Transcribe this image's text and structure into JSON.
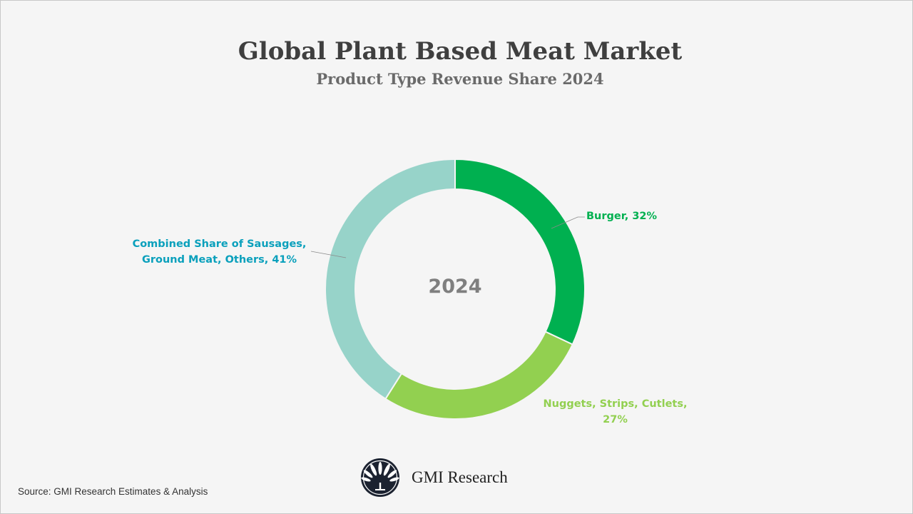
{
  "chart_data": {
    "type": "pie",
    "variant": "donut",
    "title": "Global Plant Based Meat Market",
    "subtitle": "Product Type Revenue Share 2024",
    "center_label": "2024",
    "unit": "%",
    "slices": [
      {
        "name": "Burger",
        "value": 32,
        "label": "Burger, 32%",
        "color": "#00b050",
        "label_color": "#00b050"
      },
      {
        "name": "Nuggets, Strips, Cutlets",
        "value": 27,
        "label_line1": "Nuggets, Strips, Cutlets,",
        "label_line2": "27%",
        "color": "#92d050",
        "label_color": "#92d050"
      },
      {
        "name": "Combined Share of Sausages, Ground Meat, Others",
        "value": 41,
        "label_line1": "Combined Share of Sausages,",
        "label_line2": "Ground Meat, Others, 41%",
        "color": "#97d3c9",
        "label_color": "#0aa0bc"
      }
    ]
  },
  "footer": {
    "source": "Source: GMI Research Estimates & Analysis",
    "brand": "GMI Research",
    "logo_icon": "fan-leaf-logo-icon"
  }
}
